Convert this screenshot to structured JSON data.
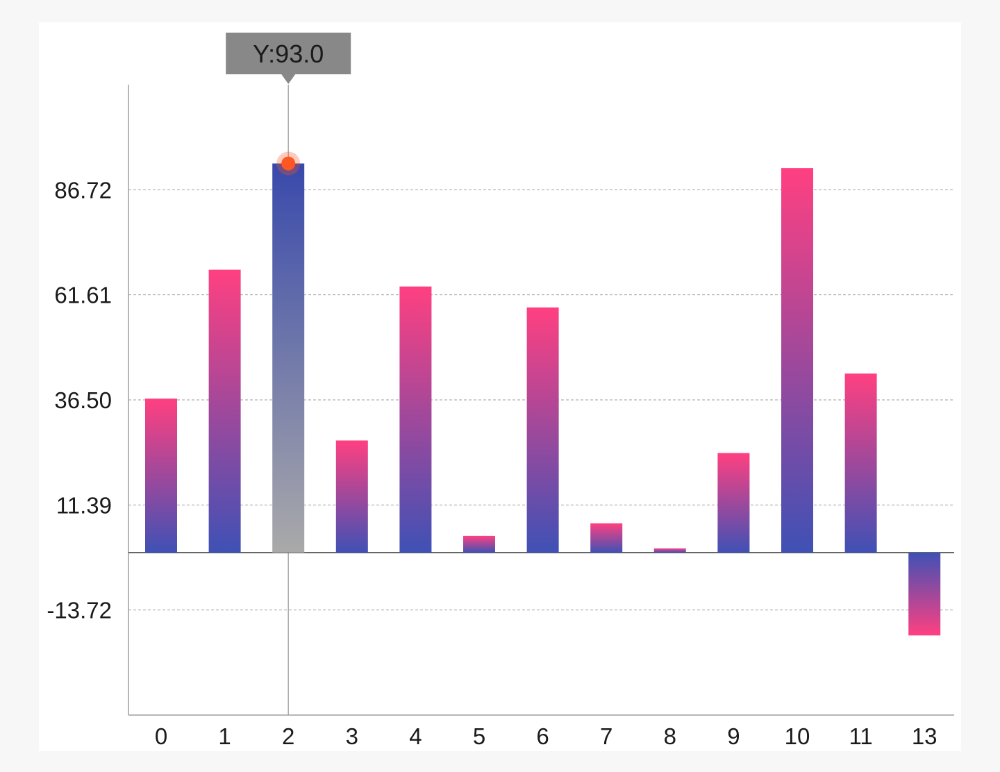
{
  "chart_data": {
    "type": "bar",
    "categories": [
      "0",
      "1",
      "2",
      "3",
      "4",
      "5",
      "6",
      "7",
      "8",
      "9",
      "10",
      "11",
      "13"
    ],
    "values": [
      36.8,
      67.6,
      93.0,
      26.8,
      63.6,
      4.0,
      58.6,
      7.0,
      1.0,
      23.8,
      91.9,
      42.8,
      -19.8
    ],
    "y_ticks": [
      "86.72",
      "61.61",
      "36.50",
      "11.39",
      "-13.72"
    ],
    "y_tick_values": [
      86.72,
      61.61,
      36.5,
      11.39,
      -13.72
    ],
    "ylim": [
      -38.83,
      111.83
    ],
    "grid": true,
    "highlighted_index": 2,
    "tooltip": "Y:93.0",
    "colors": {
      "bar_top": "#ff4081",
      "bar_bottom": "#3f51b5",
      "highlight_top": "#3949ab",
      "highlight_bottom": "#aaaaaa",
      "marker": "#ff5722",
      "tooltip_bg": "#888888"
    }
  }
}
